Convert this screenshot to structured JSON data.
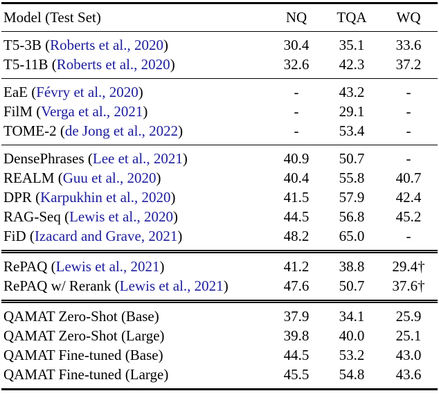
{
  "colors": {
    "text": "#000000",
    "citation_link": "#1c1c9c",
    "rule": "#000000",
    "background": "#ffffff"
  },
  "table": {
    "headers": {
      "model": "Model (Test Set)",
      "nq": "NQ",
      "tqa": "TQA",
      "wq": "WQ"
    },
    "sections": [
      {
        "rows": [
          {
            "model_prefix": "T5-3B (",
            "citation": "Roberts et al., 2020",
            "model_suffix": ")",
            "nq": "30.4",
            "tqa": "35.1",
            "wq": "33.6"
          },
          {
            "model_prefix": "T5-11B (",
            "citation": "Roberts et al., 2020",
            "model_suffix": ")",
            "nq": "32.6",
            "tqa": "42.3",
            "wq": "37.2"
          }
        ]
      },
      {
        "rows": [
          {
            "model_prefix": "EaE (",
            "citation": "Févry et al., 2020",
            "model_suffix": ")",
            "nq": "-",
            "tqa": "43.2",
            "wq": "-"
          },
          {
            "model_prefix": "FilM (",
            "citation": "Verga et al., 2021",
            "model_suffix": ")",
            "nq": "-",
            "tqa": "29.1",
            "wq": "-"
          },
          {
            "model_prefix": "TOME-2 (",
            "citation": "de Jong et al., 2022",
            "model_suffix": ")",
            "nq": "-",
            "tqa": "53.4",
            "wq": "-"
          }
        ]
      },
      {
        "rows": [
          {
            "model_prefix": "DensePhrases (",
            "citation": "Lee et al., 2021",
            "model_suffix": ")",
            "nq": "40.9",
            "tqa": "50.7",
            "wq": "-"
          },
          {
            "model_prefix": "REALM (",
            "citation": "Guu et al., 2020",
            "model_suffix": ")",
            "nq": "40.4",
            "tqa": "55.8",
            "wq": "40.7"
          },
          {
            "model_prefix": "DPR (",
            "citation": "Karpukhin et al., 2020",
            "model_suffix": ")",
            "nq": "41.5",
            "tqa": "57.9",
            "wq": "42.4"
          },
          {
            "model_prefix": "RAG-Seq (",
            "citation": "Lewis et al., 2020",
            "model_suffix": ")",
            "nq": "44.5",
            "tqa": "56.8",
            "wq": "45.2"
          },
          {
            "model_prefix": "FiD (",
            "citation": "Izacard and Grave, 2021",
            "model_suffix": ")",
            "nq": "48.2",
            "tqa": "65.0",
            "wq": "-"
          }
        ]
      },
      {
        "rows": [
          {
            "model_prefix": "RePAQ (",
            "citation": "Lewis et al., 2021",
            "model_suffix": ")",
            "nq": "41.2",
            "tqa": "38.8",
            "wq": "29.4†"
          },
          {
            "model_prefix": "RePAQ w/ Rerank (",
            "citation": "Lewis et al., 2021",
            "model_suffix": ")",
            "nq": "47.6",
            "tqa": "50.7",
            "wq": "37.6†"
          }
        ]
      },
      {
        "rows": [
          {
            "model_prefix": "QAMAT Zero-Shot (Base)",
            "citation": "",
            "model_suffix": "",
            "nq": "37.9",
            "tqa": "34.1",
            "wq": "25.9"
          },
          {
            "model_prefix": "QAMAT Zero-Shot (Large)",
            "citation": "",
            "model_suffix": "",
            "nq": "39.8",
            "tqa": "40.0",
            "wq": "25.1"
          },
          {
            "model_prefix": "QAMAT Fine-tuned (Base)",
            "citation": "",
            "model_suffix": "",
            "nq": "44.5",
            "tqa": "53.2",
            "wq": "43.0"
          },
          {
            "model_prefix": "QAMAT Fine-tuned (Large)",
            "citation": "",
            "model_suffix": "",
            "nq": "45.5",
            "tqa": "54.8",
            "wq": "43.6"
          }
        ]
      }
    ]
  }
}
